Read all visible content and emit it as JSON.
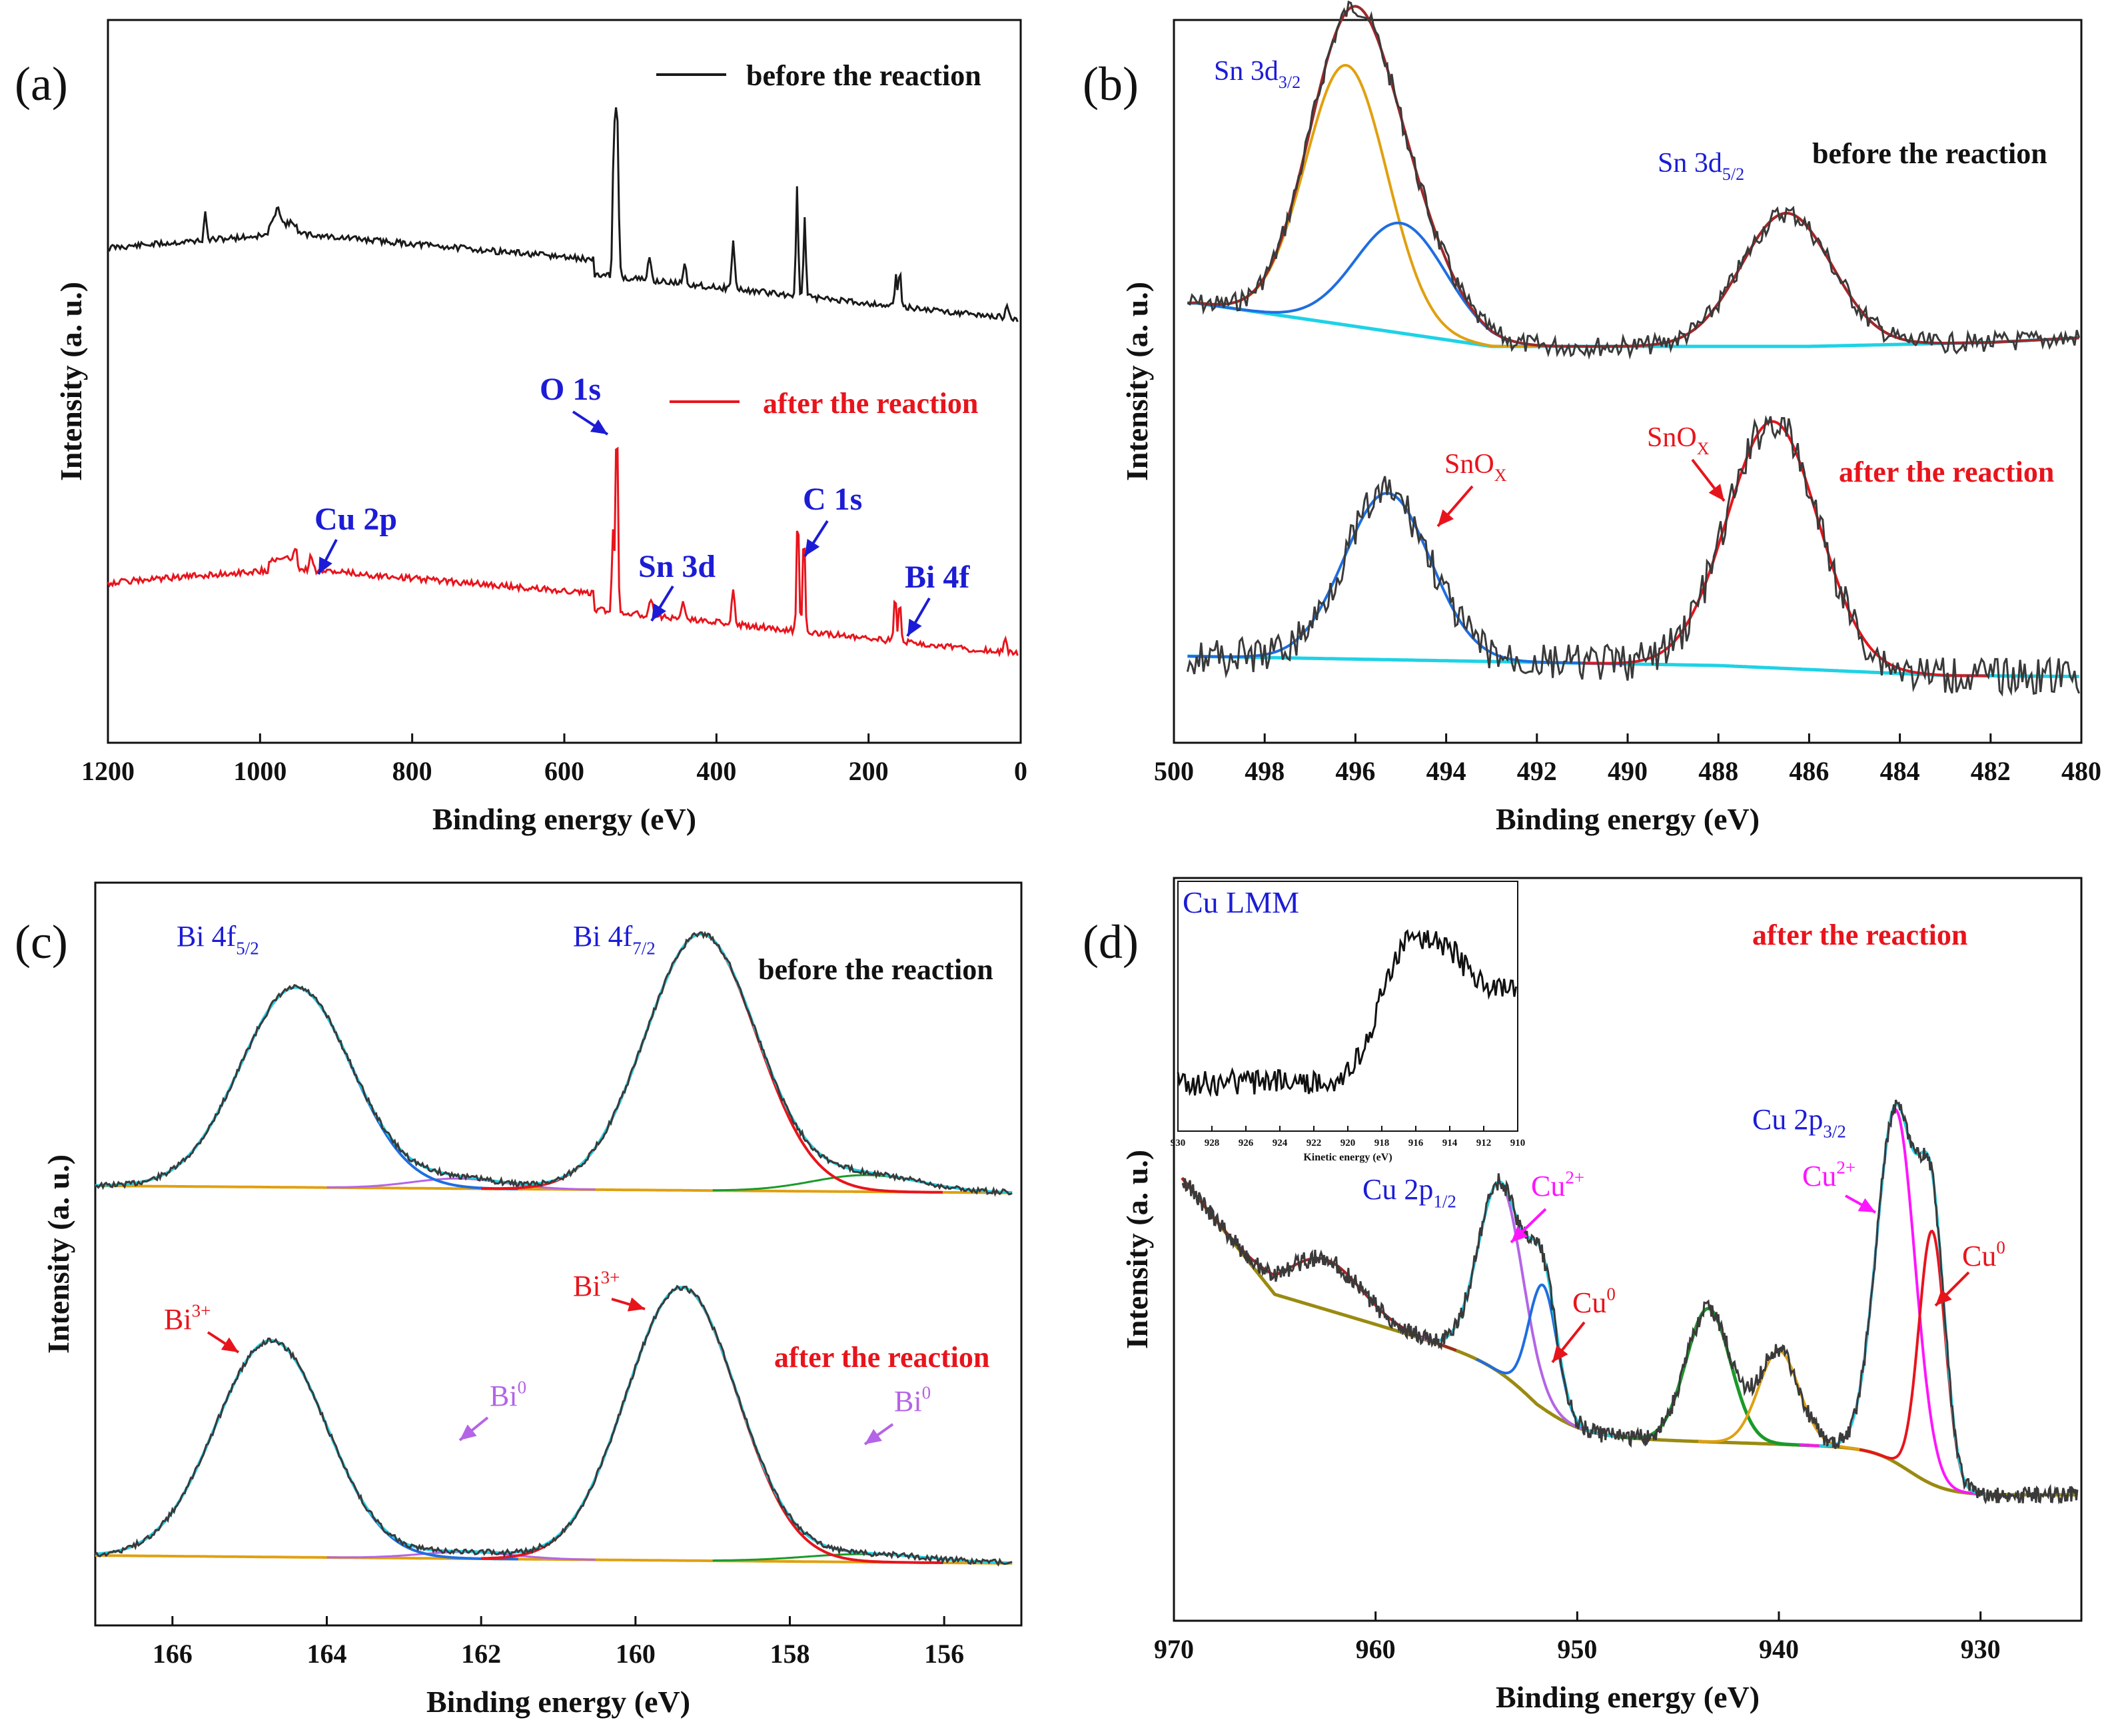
{
  "colors": {
    "black": "#1a1a1a",
    "red": "#e8141c",
    "blue": "#1c1cd6",
    "cyan": "#1ed2e6",
    "orange": "#e0a010",
    "fitblue": "#1e6ee0",
    "green": "#1a9a2a",
    "purple": "#b464e6",
    "magenta": "#ff14ff",
    "olive": "#9a8a10",
    "darkred": "#a0282a",
    "gray": "#3a3a3a"
  },
  "chart_data": [
    {
      "panel_label": "(a)",
      "type": "line",
      "xlabel": "Binding energy (eV)",
      "ylabel": "Intensity (a. u.)",
      "xlim": [
        1200,
        0
      ],
      "xticks": [
        "1200",
        "1000",
        "800",
        "600",
        "400",
        "200",
        "0"
      ],
      "series": [
        {
          "name": "before the reaction",
          "color": "black"
        },
        {
          "name": "after the reaction",
          "color": "red"
        }
      ],
      "peaks": [
        {
          "label": "O 1s",
          "x": 531
        },
        {
          "label": "Cu 2p",
          "x": 933
        },
        {
          "label": "Sn 3d",
          "x": 487
        },
        {
          "label": "C 1s",
          "x": 285
        },
        {
          "label": "Bi 4f",
          "x": 159
        }
      ],
      "legend": [
        "before the reaction",
        "after the reaction"
      ]
    },
    {
      "panel_label": "(b)",
      "type": "line",
      "xlabel": "Binding energy (eV)",
      "ylabel": "Intensity (a. u.)",
      "xlim": [
        500,
        480
      ],
      "xticks": [
        "500",
        "498",
        "496",
        "494",
        "492",
        "490",
        "488",
        "486",
        "484",
        "482",
        "480"
      ],
      "series_labels": [
        "before the reaction",
        "after the reaction"
      ],
      "peak_labels": [
        "Sn 3d",
        "3/2",
        "Sn 3d",
        "5/2",
        "SnO",
        "X",
        "SnO",
        "X"
      ],
      "before": {
        "peaks": [
          {
            "center": 496.2,
            "name": "Sn 3d3/2"
          },
          {
            "center": 495.0
          },
          {
            "center": 486.5,
            "name": "Sn 3d5/2"
          }
        ]
      },
      "after": {
        "peaks": [
          {
            "center": 495.3,
            "name": "SnOX"
          },
          {
            "center": 486.8,
            "name": "SnOX"
          }
        ]
      }
    },
    {
      "panel_label": "(c)",
      "type": "line",
      "xlabel": "Binding energy (eV)",
      "ylabel": "Intensity (a. u.)",
      "xlim": [
        167,
        155
      ],
      "xticks": [
        "166",
        "164",
        "162",
        "160",
        "158",
        "156"
      ],
      "series_labels": [
        "before the reaction",
        "after the reaction"
      ],
      "peak_labels": [
        "Bi 4f",
        "5/2",
        "Bi 4f",
        "7/2",
        "Bi",
        "3+",
        "Bi",
        "3+",
        "Bi",
        "0",
        "Bi",
        "0"
      ],
      "before": {
        "peaks": [
          {
            "center": 164.4,
            "name": "Bi 4f5/2"
          },
          {
            "center": 159.1,
            "name": "Bi 4f7/2"
          }
        ]
      },
      "after": {
        "peaks": [
          {
            "center": 164.7,
            "name": "Bi3+"
          },
          {
            "center": 159.4,
            "name": "Bi3+"
          },
          {
            "center": 162.2,
            "name": "Bi0"
          },
          {
            "center": 157.0,
            "name": "Bi0"
          }
        ]
      }
    },
    {
      "panel_label": "(d)",
      "type": "line",
      "xlabel": "Binding energy (eV)",
      "ylabel": "Intensity (a. u.)",
      "xlim": [
        970,
        925
      ],
      "xticks": [
        "970",
        "960",
        "950",
        "940",
        "930"
      ],
      "series_labels": [
        "after the reaction"
      ],
      "peak_labels": [
        "Cu 2p",
        "1/2",
        "Cu 2p",
        "3/2",
        "Cu",
        "2+",
        "Cu",
        "2+",
        "Cu",
        "0",
        "Cu",
        "0"
      ],
      "peaks": [
        {
          "center": 953.8,
          "name": "Cu2+"
        },
        {
          "center": 951.8,
          "name": "Cu0"
        },
        {
          "center": 943.5
        },
        {
          "center": 940.0
        },
        {
          "center": 934.0,
          "name": "Cu2+"
        },
        {
          "center": 932.4,
          "name": "Cu0"
        },
        {
          "center": 962.5
        }
      ],
      "inset": {
        "title": "Cu LMM",
        "xlabel": "Kinetic energy (eV)",
        "xlim": [
          930,
          910
        ],
        "xticks": [
          "930",
          "928",
          "926",
          "924",
          "922",
          "920",
          "918",
          "916",
          "914",
          "912",
          "910"
        ]
      }
    }
  ]
}
